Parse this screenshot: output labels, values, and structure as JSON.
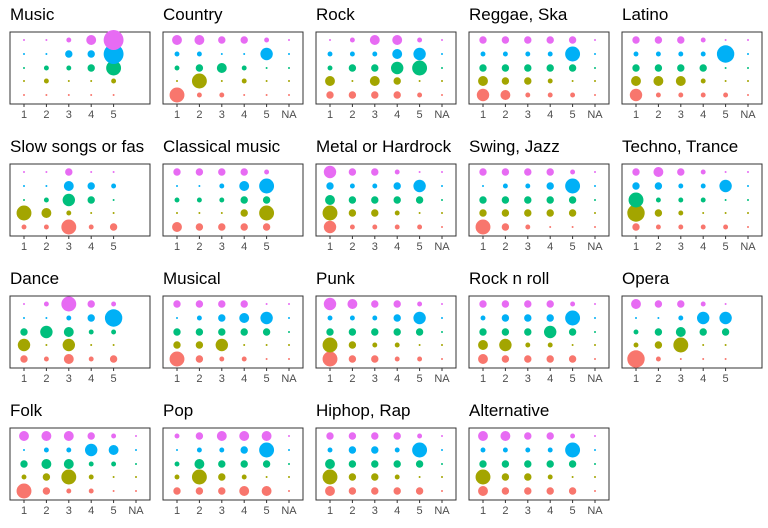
{
  "chart_data": {
    "type": "scatter",
    "series_colors": [
      "#F8766D",
      "#A3A500",
      "#00BF7D",
      "#00B0F6",
      "#E76BF3"
    ],
    "panels": [
      {
        "title": "Music",
        "categories": [
          "1",
          "2",
          "3",
          "4",
          "5"
        ],
        "sizes": [
          [
            1,
            1,
            1,
            1,
            1
          ],
          [
            1,
            2,
            1,
            1,
            2
          ],
          [
            1,
            2,
            2,
            3,
            6
          ],
          [
            1,
            1,
            3,
            3,
            8
          ],
          [
            1,
            1,
            2,
            4,
            8
          ]
        ]
      },
      {
        "title": "Country",
        "categories": [
          "1",
          "2",
          "3",
          "4",
          "5",
          "NA"
        ],
        "sizes": [
          [
            6,
            2,
            2,
            1,
            1,
            1
          ],
          [
            1,
            6,
            1,
            2,
            1,
            1
          ],
          [
            2,
            3,
            4,
            2,
            1,
            1
          ],
          [
            2,
            2,
            1,
            1,
            5,
            1
          ],
          [
            4,
            4,
            3,
            3,
            2,
            1
          ]
        ]
      },
      {
        "title": "Rock",
        "categories": [
          "1",
          "2",
          "3",
          "4",
          "5",
          "NA"
        ],
        "sizes": [
          [
            3,
            3,
            3,
            3,
            2,
            1
          ],
          [
            4,
            1,
            4,
            3,
            1,
            1
          ],
          [
            2,
            3,
            3,
            5,
            6,
            1
          ],
          [
            2,
            2,
            2,
            4,
            5,
            1
          ],
          [
            1,
            2,
            4,
            4,
            2,
            1
          ]
        ]
      },
      {
        "title": "Reggae, Ska",
        "categories": [
          "1",
          "2",
          "3",
          "4",
          "5",
          "NA"
        ],
        "sizes": [
          [
            5,
            4,
            2,
            2,
            2,
            1
          ],
          [
            4,
            3,
            3,
            2,
            1,
            1
          ],
          [
            3,
            3,
            3,
            3,
            3,
            1
          ],
          [
            2,
            2,
            2,
            2,
            6,
            1
          ],
          [
            3,
            3,
            3,
            3,
            3,
            1
          ]
        ]
      },
      {
        "title": "Latino",
        "categories": [
          "1",
          "2",
          "3",
          "4",
          "5",
          "NA"
        ],
        "sizes": [
          [
            5,
            2,
            2,
            2,
            2,
            1
          ],
          [
            4,
            4,
            4,
            2,
            1,
            1
          ],
          [
            3,
            3,
            3,
            3,
            1,
            1
          ],
          [
            2,
            2,
            2,
            2,
            7,
            1
          ],
          [
            3,
            3,
            3,
            2,
            1,
            1
          ]
        ]
      },
      {
        "title": "Slow songs or fas",
        "categories": [
          "1",
          "2",
          "3",
          "4",
          "5"
        ],
        "sizes": [
          [
            2,
            2,
            6,
            2,
            3
          ],
          [
            6,
            4,
            2,
            1,
            1
          ],
          [
            1,
            2,
            5,
            3,
            1
          ],
          [
            1,
            1,
            4,
            3,
            2
          ],
          [
            1,
            1,
            3,
            1,
            1
          ]
        ]
      },
      {
        "title": "Classical music",
        "categories": [
          "1",
          "2",
          "3",
          "4",
          "5"
        ],
        "sizes": [
          [
            4,
            3,
            3,
            3,
            3
          ],
          [
            1,
            1,
            1,
            3,
            6
          ],
          [
            2,
            2,
            2,
            3,
            3
          ],
          [
            1,
            1,
            2,
            4,
            6
          ],
          [
            3,
            3,
            3,
            3,
            2
          ]
        ]
      },
      {
        "title": "Metal or Hardrock",
        "categories": [
          "1",
          "2",
          "3",
          "4",
          "5",
          "NA"
        ],
        "sizes": [
          [
            5,
            2,
            2,
            2,
            2,
            1
          ],
          [
            6,
            3,
            3,
            2,
            1,
            1
          ],
          [
            4,
            3,
            3,
            3,
            3,
            1
          ],
          [
            3,
            2,
            2,
            3,
            5,
            1
          ],
          [
            5,
            3,
            3,
            2,
            1,
            1
          ]
        ]
      },
      {
        "title": "Swing, Jazz",
        "categories": [
          "1",
          "2",
          "3",
          "4",
          "5",
          "NA"
        ],
        "sizes": [
          [
            6,
            3,
            2,
            1,
            1,
            1
          ],
          [
            3,
            3,
            3,
            3,
            3,
            1
          ],
          [
            3,
            3,
            3,
            3,
            3,
            1
          ],
          [
            1,
            2,
            2,
            3,
            6,
            1
          ],
          [
            3,
            3,
            3,
            3,
            2,
            1
          ]
        ]
      },
      {
        "title": "Techno, Trance",
        "categories": [
          "1",
          "2",
          "3",
          "4",
          "5",
          "NA"
        ],
        "sizes": [
          [
            3,
            2,
            2,
            2,
            2,
            1
          ],
          [
            7,
            3,
            2,
            1,
            1,
            1
          ],
          [
            6,
            2,
            2,
            2,
            1,
            1
          ],
          [
            3,
            3,
            2,
            2,
            5,
            1
          ],
          [
            3,
            4,
            3,
            2,
            1,
            1
          ]
        ]
      },
      {
        "title": "Dance",
        "categories": [
          "1",
          "2",
          "3",
          "4",
          "5"
        ],
        "sizes": [
          [
            3,
            2,
            4,
            2,
            3
          ],
          [
            5,
            1,
            5,
            1,
            1
          ],
          [
            3,
            5,
            4,
            2,
            2
          ],
          [
            1,
            1,
            2,
            3,
            7
          ],
          [
            1,
            2,
            6,
            3,
            2
          ]
        ]
      },
      {
        "title": "Musical",
        "categories": [
          "1",
          "2",
          "3",
          "4",
          "5",
          "NA"
        ],
        "sizes": [
          [
            6,
            3,
            2,
            2,
            1,
            1
          ],
          [
            3,
            3,
            5,
            1,
            1,
            1
          ],
          [
            3,
            3,
            3,
            3,
            3,
            1
          ],
          [
            1,
            2,
            3,
            4,
            5,
            1
          ],
          [
            3,
            3,
            3,
            3,
            1,
            1
          ]
        ]
      },
      {
        "title": "Punk",
        "categories": [
          "1",
          "2",
          "3",
          "4",
          "5",
          "NA"
        ],
        "sizes": [
          [
            6,
            3,
            3,
            2,
            2,
            1
          ],
          [
            6,
            3,
            2,
            2,
            1,
            1
          ],
          [
            3,
            3,
            3,
            3,
            3,
            1
          ],
          [
            2,
            2,
            2,
            3,
            5,
            1
          ],
          [
            5,
            4,
            3,
            3,
            2,
            1
          ]
        ]
      },
      {
        "title": "Rock n roll",
        "categories": [
          "1",
          "2",
          "3",
          "4",
          "5",
          "NA"
        ],
        "sizes": [
          [
            4,
            3,
            3,
            3,
            3,
            1
          ],
          [
            4,
            5,
            2,
            2,
            1,
            1
          ],
          [
            3,
            3,
            3,
            5,
            3,
            1
          ],
          [
            2,
            3,
            3,
            3,
            6,
            1
          ],
          [
            3,
            3,
            3,
            3,
            2,
            1
          ]
        ]
      },
      {
        "title": "Opera",
        "categories": [
          "1",
          "2",
          "3",
          "4",
          "5"
        ],
        "sizes": [
          [
            7,
            2,
            1,
            1,
            1
          ],
          [
            2,
            3,
            6,
            1,
            1
          ],
          [
            2,
            3,
            4,
            3,
            3
          ],
          [
            1,
            1,
            2,
            5,
            5
          ],
          [
            4,
            3,
            3,
            2,
            1
          ]
        ]
      },
      {
        "title": "Folk",
        "categories": [
          "1",
          "2",
          "3",
          "4",
          "5",
          "NA"
        ],
        "sizes": [
          [
            6,
            3,
            2,
            2,
            1,
            1
          ],
          [
            2,
            3,
            6,
            2,
            1,
            1
          ],
          [
            3,
            4,
            4,
            2,
            2,
            1
          ],
          [
            1,
            2,
            2,
            5,
            4,
            1
          ],
          [
            4,
            4,
            4,
            3,
            2,
            1
          ]
        ]
      },
      {
        "title": "Pop",
        "categories": [
          "1",
          "2",
          "3",
          "4",
          "5",
          "NA"
        ],
        "sizes": [
          [
            3,
            3,
            3,
            4,
            4,
            1
          ],
          [
            2,
            6,
            3,
            2,
            1,
            1
          ],
          [
            2,
            4,
            3,
            3,
            3,
            1
          ],
          [
            1,
            2,
            2,
            3,
            6,
            1
          ],
          [
            2,
            3,
            4,
            4,
            4,
            1
          ]
        ]
      },
      {
        "title": "Hiphop, Rap",
        "categories": [
          "1",
          "2",
          "3",
          "4",
          "5",
          "NA"
        ],
        "sizes": [
          [
            4,
            3,
            3,
            3,
            3,
            1
          ],
          [
            6,
            3,
            3,
            2,
            1,
            1
          ],
          [
            4,
            3,
            3,
            3,
            3,
            1
          ],
          [
            2,
            3,
            3,
            2,
            6,
            1
          ],
          [
            3,
            3,
            3,
            3,
            2,
            1
          ]
        ]
      },
      {
        "title": "Alternative",
        "categories": [
          "1",
          "2",
          "3",
          "4",
          "5",
          "NA"
        ],
        "sizes": [
          [
            4,
            3,
            3,
            3,
            3,
            1
          ],
          [
            6,
            3,
            3,
            2,
            1,
            1
          ],
          [
            3,
            3,
            3,
            3,
            3,
            1
          ],
          [
            2,
            2,
            2,
            2,
            6,
            1
          ],
          [
            4,
            4,
            3,
            3,
            2,
            1
          ]
        ]
      }
    ]
  }
}
